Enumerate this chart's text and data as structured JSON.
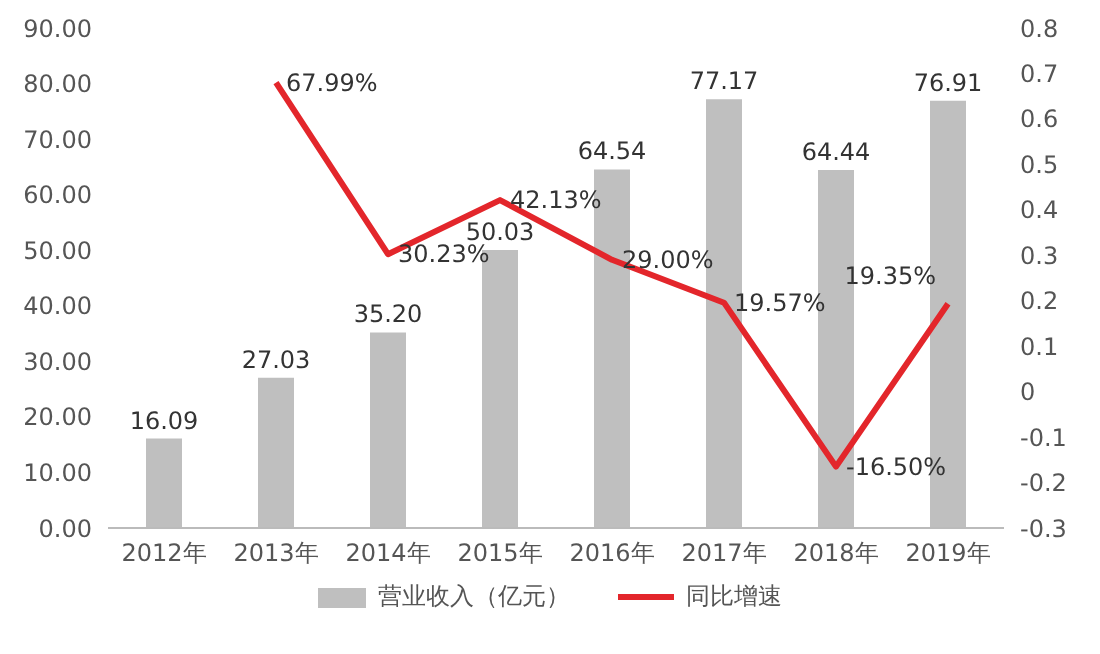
{
  "chart_data": {
    "type": "bar",
    "categories": [
      "2012年",
      "2013年",
      "2014年",
      "2015年",
      "2016年",
      "2017年",
      "2018年",
      "2019年"
    ],
    "series": [
      {
        "name": "营业收入（亿元）",
        "color": "#bfbfbf",
        "values": [
          16.09,
          27.03,
          35.2,
          50.03,
          64.54,
          77.17,
          64.44,
          76.91
        ],
        "value_labels": [
          "16.09",
          "27.03",
          "35.20",
          "50.03",
          "64.54",
          "77.17",
          "64.44",
          "76.91"
        ]
      },
      {
        "name": "同比增速",
        "type": "line",
        "axis": "y2",
        "color": "#e3262b",
        "values": [
          null,
          0.6799,
          0.3023,
          0.4213,
          0.29,
          0.1957,
          -0.165,
          0.1935
        ],
        "value_labels": [
          null,
          "67.99%",
          "30.23%",
          "42.13%",
          "29.00%",
          "19.57%",
          "-16.50%",
          "19.35%"
        ]
      }
    ],
    "ylim": [
      0,
      90
    ],
    "yticks": [
      {
        "value": 0,
        "label": "0.00"
      },
      {
        "value": 10,
        "label": "10.00"
      },
      {
        "value": 20,
        "label": "20.00"
      },
      {
        "value": 30,
        "label": "30.00"
      },
      {
        "value": 40,
        "label": "40.00"
      },
      {
        "value": 50,
        "label": "50.00"
      },
      {
        "value": 60,
        "label": "60.00"
      },
      {
        "value": 70,
        "label": "70.00"
      },
      {
        "value": 80,
        "label": "80.00"
      },
      {
        "value": 90,
        "label": "90.00"
      }
    ],
    "y2lim": [
      -0.3,
      0.8
    ],
    "y2ticks": [
      -0.3,
      -0.2,
      -0.1,
      0,
      0.1,
      0.2,
      0.3,
      0.4,
      0.5,
      0.6,
      0.7,
      0.8
    ],
    "grid": false,
    "legend": "bottom",
    "marker": "none",
    "line_style": "solid"
  }
}
